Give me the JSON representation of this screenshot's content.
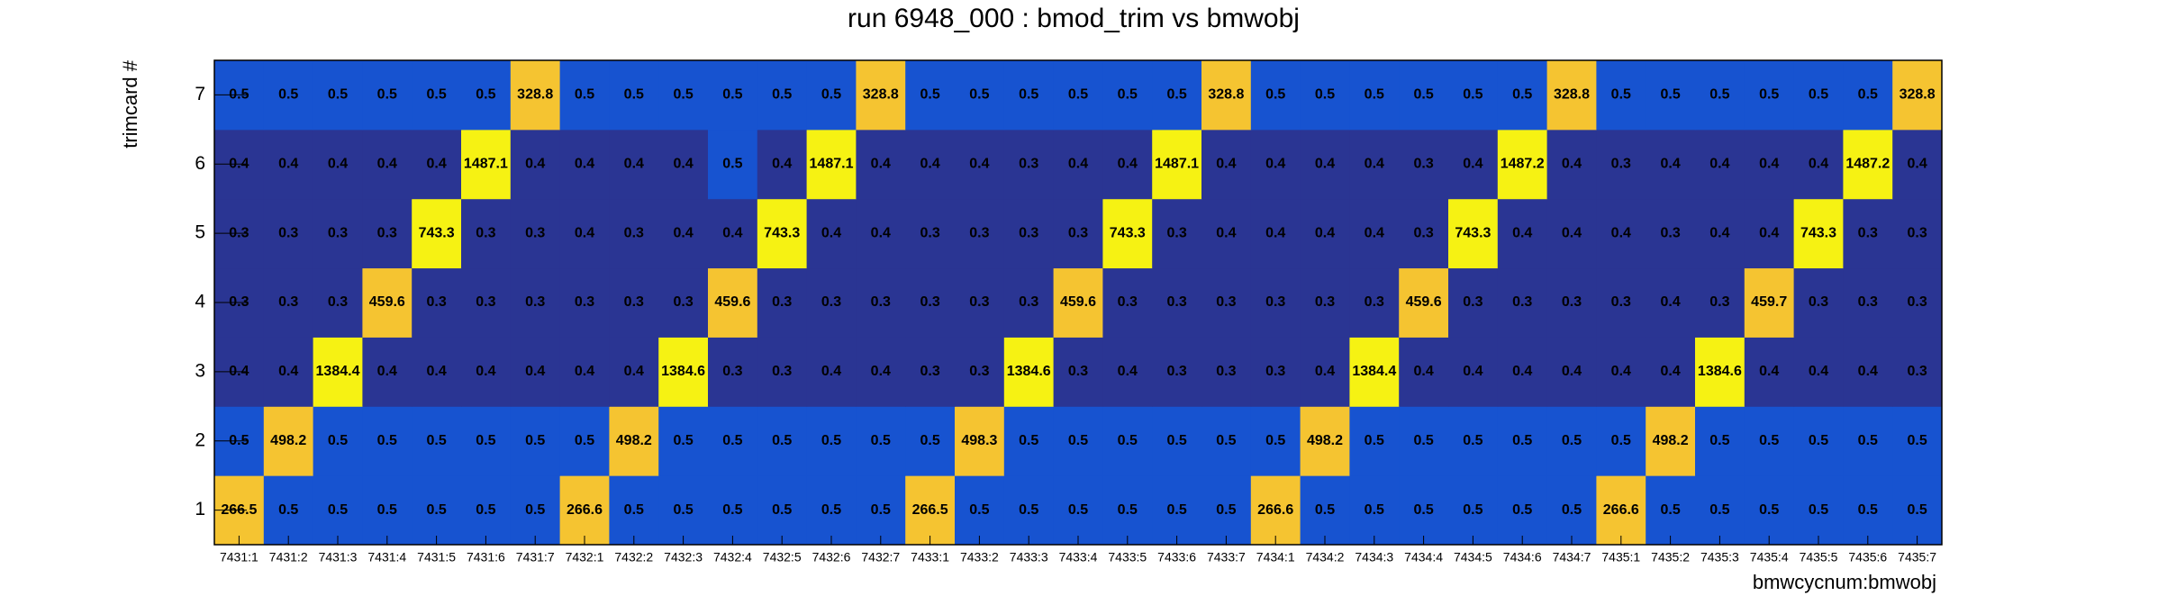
{
  "chart_data": {
    "type": "heatmap",
    "title": "run 6948_000 : bmod_trim vs bmwobj",
    "x_label": "bmwcycnum:bmwobj",
    "y_label": "trimcard #",
    "x_categories": [
      "7431:1",
      "7431:2",
      "7431:3",
      "7431:4",
      "7431:5",
      "7431:6",
      "7431:7",
      "7432:1",
      "7432:2",
      "7432:3",
      "7432:4",
      "7432:5",
      "7432:6",
      "7432:7",
      "7433:1",
      "7433:2",
      "7433:3",
      "7433:4",
      "7433:5",
      "7433:6",
      "7433:7",
      "7434:1",
      "7434:2",
      "7434:3",
      "7434:4",
      "7434:5",
      "7434:6",
      "7434:7",
      "7435:1",
      "7435:2",
      "7435:3",
      "7435:4",
      "7435:5",
      "7435:6",
      "7435:7"
    ],
    "y_categories": [
      "1",
      "2",
      "3",
      "4",
      "5",
      "6",
      "7"
    ],
    "z": [
      [
        266.5,
        0.5,
        0.5,
        0.5,
        0.5,
        0.5,
        0.5,
        266.6,
        0.5,
        0.5,
        0.5,
        0.5,
        0.5,
        0.5,
        266.5,
        0.5,
        0.5,
        0.5,
        0.5,
        0.5,
        0.5,
        266.6,
        0.5,
        0.5,
        0.5,
        0.5,
        0.5,
        0.5,
        266.6,
        0.5,
        0.5,
        0.5,
        0.5,
        0.5,
        0.5
      ],
      [
        0.5,
        498.2,
        0.5,
        0.5,
        0.5,
        0.5,
        0.5,
        0.5,
        498.2,
        0.5,
        0.5,
        0.5,
        0.5,
        0.5,
        0.5,
        498.3,
        0.5,
        0.5,
        0.5,
        0.5,
        0.5,
        0.5,
        498.2,
        0.5,
        0.5,
        0.5,
        0.5,
        0.5,
        0.5,
        498.2,
        0.5,
        0.5,
        0.5,
        0.5,
        0.5
      ],
      [
        0.4,
        0.4,
        1384.4,
        0.4,
        0.4,
        0.4,
        0.4,
        0.4,
        0.4,
        1384.6,
        0.3,
        0.3,
        0.4,
        0.4,
        0.3,
        0.3,
        1384.6,
        0.3,
        0.4,
        0.3,
        0.3,
        0.3,
        0.4,
        1384.4,
        0.4,
        0.4,
        0.4,
        0.4,
        0.4,
        0.4,
        1384.6,
        0.4,
        0.4,
        0.4,
        0.3
      ],
      [
        0.3,
        0.3,
        0.3,
        459.6,
        0.3,
        0.3,
        0.3,
        0.3,
        0.3,
        0.3,
        459.6,
        0.3,
        0.3,
        0.3,
        0.3,
        0.3,
        0.3,
        459.6,
        0.3,
        0.3,
        0.3,
        0.3,
        0.3,
        0.3,
        459.6,
        0.3,
        0.3,
        0.3,
        0.3,
        0.4,
        0.3,
        459.7,
        0.3,
        0.3,
        0.3
      ],
      [
        0.3,
        0.3,
        0.3,
        0.3,
        743.3,
        0.3,
        0.3,
        0.4,
        0.3,
        0.4,
        0.4,
        743.3,
        0.4,
        0.4,
        0.3,
        0.3,
        0.3,
        0.3,
        743.3,
        0.3,
        0.4,
        0.4,
        0.4,
        0.4,
        0.3,
        743.3,
        0.4,
        0.4,
        0.4,
        0.3,
        0.4,
        0.4,
        743.3,
        0.3,
        0.3
      ],
      [
        0.4,
        0.4,
        0.4,
        0.4,
        0.4,
        1487.1,
        0.4,
        0.4,
        0.4,
        0.4,
        0.5,
        0.4,
        1487.1,
        0.4,
        0.4,
        0.4,
        0.3,
        0.4,
        0.4,
        1487.1,
        0.4,
        0.4,
        0.4,
        0.4,
        0.3,
        0.4,
        1487.2,
        0.4,
        0.3,
        0.4,
        0.4,
        0.4,
        0.4,
        1487.2,
        0.4
      ],
      [
        0.5,
        0.5,
        0.5,
        0.5,
        0.5,
        0.5,
        328.8,
        0.5,
        0.5,
        0.5,
        0.5,
        0.5,
        0.5,
        328.8,
        0.5,
        0.5,
        0.5,
        0.5,
        0.5,
        0.5,
        328.8,
        0.5,
        0.5,
        0.5,
        0.5,
        0.5,
        0.5,
        328.8,
        0.5,
        0.5,
        0.5,
        0.5,
        0.5,
        0.5,
        328.8
      ]
    ]
  }
}
